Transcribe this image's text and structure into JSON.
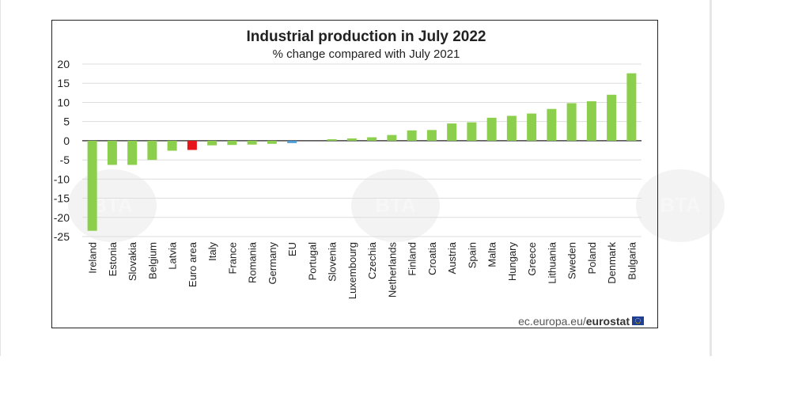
{
  "source": {
    "prefix": "ec.europa.eu/",
    "brand": "eurostat"
  },
  "watermark_text": "BTA",
  "chart_data": {
    "type": "bar",
    "title": "Industrial production in July 2022",
    "subtitle": "% change compared with July 2021",
    "xlabel": "",
    "ylabel": "",
    "ylim": [
      -25,
      20
    ],
    "yticks": [
      20,
      15,
      10,
      5,
      0,
      -5,
      -10,
      -15,
      -20,
      -25
    ],
    "grid": true,
    "categories": [
      "Ireland",
      "Estonia",
      "Slovakia",
      "Belgium",
      "Latvia",
      "Euro area",
      "Italy",
      "France",
      "Romania",
      "Germany",
      "EU",
      "Portugal",
      "Slovenia",
      "Luxembourg",
      "Czechia",
      "Netherlands",
      "Finland",
      "Croatia",
      "Austria",
      "Spain",
      "Malta",
      "Hungary",
      "Greece",
      "Lithuania",
      "Sweden",
      "Poland",
      "Denmark",
      "Bulgaria"
    ],
    "values": [
      -23.5,
      -6.3,
      -6.3,
      -5.0,
      -2.6,
      -2.4,
      -1.2,
      -1.1,
      -1.0,
      -0.8,
      -0.6,
      0.0,
      0.4,
      0.6,
      0.9,
      1.5,
      2.7,
      2.8,
      4.5,
      4.8,
      6.0,
      6.5,
      7.1,
      8.3,
      9.8,
      10.3,
      12.0,
      17.6
    ],
    "colors": {
      "default": "#8ccf4d",
      "euro_area": "#e8141c",
      "eu": "#4a9bd6"
    }
  }
}
